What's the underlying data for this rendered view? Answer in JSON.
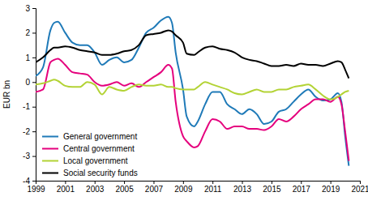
{
  "chart_data": {
    "type": "line",
    "y_label": "EUR bn",
    "x": [
      1999,
      1999.5,
      2000,
      2000.25,
      2000.5,
      2001,
      2001.5,
      2002,
      2002.5,
      2003,
      2003.5,
      2004,
      2004.5,
      2005,
      2005.5,
      2006,
      2006.5,
      2007,
      2007.5,
      2008,
      2008.25,
      2008.5,
      2009,
      2009.25,
      2009.75,
      2010,
      2010.5,
      2011,
      2011.5,
      2012,
      2012.5,
      2013,
      2013.5,
      2014,
      2014.5,
      2015,
      2015.5,
      2016,
      2016.5,
      2017,
      2017.5,
      2018,
      2018.5,
      2019,
      2019.5,
      2019.75,
      2020,
      2020.25
    ],
    "series": [
      {
        "name": "General government",
        "color": "#1f7ab8",
        "values": [
          0.25,
          0.6,
          2.1,
          2.4,
          2.45,
          2.0,
          1.6,
          1.5,
          1.5,
          1.2,
          0.7,
          0.9,
          1.0,
          0.8,
          0.9,
          1.4,
          2.0,
          2.2,
          2.5,
          2.65,
          2.4,
          1.2,
          -0.3,
          -1.4,
          -1.8,
          -1.6,
          -0.9,
          -0.4,
          -0.4,
          -0.9,
          -1.1,
          -1.3,
          -1.1,
          -1.3,
          -1.7,
          -1.6,
          -1.2,
          -1.1,
          -0.8,
          -0.5,
          -0.3,
          -0.6,
          -0.75,
          -0.7,
          -0.45,
          -0.8,
          -2.2,
          -3.4
        ]
      },
      {
        "name": "Central government",
        "color": "#e5007d",
        "values": [
          -0.4,
          -0.3,
          0.8,
          0.9,
          0.95,
          0.7,
          0.4,
          0.35,
          0.3,
          0.0,
          -0.15,
          -0.1,
          0.0,
          -0.15,
          -0.05,
          -0.2,
          0.0,
          0.2,
          0.4,
          0.7,
          0.55,
          -0.8,
          -2.2,
          -2.4,
          -2.65,
          -2.6,
          -2.0,
          -1.5,
          -1.6,
          -1.9,
          -1.8,
          -1.8,
          -1.9,
          -1.9,
          -1.95,
          -1.8,
          -1.5,
          -1.6,
          -1.4,
          -1.1,
          -0.9,
          -0.7,
          -0.7,
          -0.8,
          -0.6,
          -0.9,
          -2.0,
          -3.2
        ]
      },
      {
        "name": "Local government",
        "color": "#b3d335",
        "values": [
          -0.1,
          -0.05,
          0.05,
          0.1,
          0.05,
          -0.15,
          -0.2,
          -0.2,
          0.0,
          -0.1,
          -0.5,
          -0.2,
          -0.3,
          -0.35,
          -0.2,
          -0.1,
          -0.15,
          -0.15,
          -0.1,
          -0.2,
          -0.2,
          -0.25,
          -0.3,
          -0.3,
          -0.3,
          -0.2,
          0.0,
          -0.1,
          -0.2,
          -0.3,
          -0.45,
          -0.5,
          -0.4,
          -0.3,
          -0.4,
          -0.4,
          -0.3,
          -0.3,
          -0.2,
          -0.15,
          -0.1,
          -0.3,
          -0.55,
          -0.7,
          -0.6,
          -0.5,
          -0.4,
          -0.35
        ]
      },
      {
        "name": "Social security funds",
        "color": "#000000",
        "values": [
          0.8,
          1.0,
          1.3,
          1.4,
          1.4,
          1.45,
          1.4,
          1.3,
          1.25,
          1.2,
          1.1,
          1.1,
          1.15,
          1.25,
          1.3,
          1.5,
          1.9,
          1.95,
          2.0,
          2.1,
          2.05,
          1.9,
          1.6,
          1.15,
          1.1,
          1.2,
          1.4,
          1.45,
          1.35,
          1.3,
          1.2,
          1.0,
          0.9,
          0.85,
          0.75,
          0.65,
          0.65,
          0.7,
          0.65,
          0.75,
          0.7,
          0.7,
          0.65,
          0.75,
          0.85,
          0.8,
          0.5,
          0.15
        ]
      }
    ],
    "xlim": [
      1999,
      2021
    ],
    "xticks": [
      1999,
      2001,
      2003,
      2005,
      2007,
      2009,
      2011,
      2013,
      2015,
      2017,
      2019,
      2021
    ],
    "ylim": [
      -4,
      3
    ],
    "yticks": [
      -4,
      -3,
      -2,
      -1,
      0,
      1,
      2,
      3
    ],
    "grid": false,
    "legend": "lower left"
  }
}
